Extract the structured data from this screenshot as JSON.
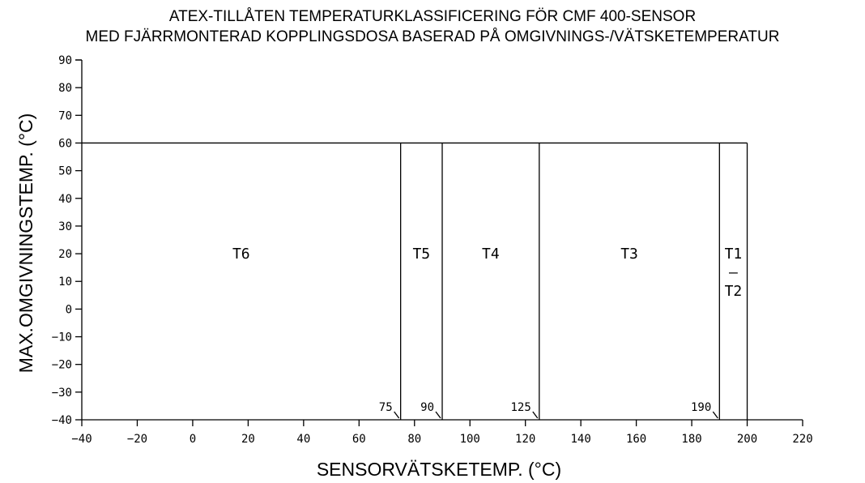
{
  "chart_data": {
    "type": "area",
    "title_lines": [
      "ATEX-TILLÅTEN TEMPERATURKLASSIFICERING FÖR CMF 400-SENSOR",
      "MED FJÄRRMONTERAD KOPPLINGSDOSA BASERAD PÅ OMGIVNINGS-/VÄTSKETEMPERATUR"
    ],
    "xlabel": "SENSORVÄTSKETEMP. (°C)",
    "ylabel": "MAX.OMGIVNINGSTEMP. (°C)",
    "xlim": [
      -40,
      220
    ],
    "ylim": [
      -40,
      90
    ],
    "x_ticks": [
      -40,
      -20,
      0,
      20,
      40,
      60,
      80,
      100,
      120,
      140,
      160,
      180,
      200,
      220
    ],
    "x_tick_labels": [
      "−40",
      "−20",
      "0",
      "20",
      "40",
      "60",
      "80",
      "100",
      "120",
      "140",
      "160",
      "180",
      "200",
      "220"
    ],
    "y_ticks": [
      90,
      80,
      70,
      60,
      50,
      40,
      30,
      20,
      10,
      0,
      -10,
      -20,
      -30,
      -40
    ],
    "y_tick_labels": [
      "90",
      "80",
      "70",
      "60",
      "50",
      "40",
      "30",
      "20",
      "10",
      "0",
      "−10",
      "−20",
      "−30",
      "−40"
    ],
    "max_ambient": 60,
    "zones": [
      {
        "name": "T6",
        "x_start": -40,
        "x_end": 75
      },
      {
        "name": "T5",
        "x_start": 75,
        "x_end": 90
      },
      {
        "name": "T4",
        "x_start": 90,
        "x_end": 125
      },
      {
        "name": "T3",
        "x_start": 125,
        "x_end": 190
      },
      {
        "name": "T1 – T2",
        "label_lines": [
          "T1",
          "–",
          "T2"
        ],
        "x_start": 190,
        "x_end": 200
      }
    ],
    "boundary_labels": [
      {
        "value": 75,
        "text": "75"
      },
      {
        "value": 90,
        "text": "90"
      },
      {
        "value": 125,
        "text": "125"
      },
      {
        "value": 190,
        "text": "190"
      }
    ],
    "grid": false,
    "legend": "none"
  }
}
